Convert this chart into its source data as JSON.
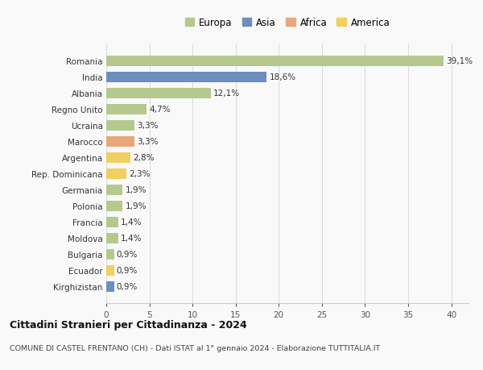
{
  "countries": [
    "Romania",
    "India",
    "Albania",
    "Regno Unito",
    "Ucraina",
    "Marocco",
    "Argentina",
    "Rep. Dominicana",
    "Germania",
    "Polonia",
    "Francia",
    "Moldova",
    "Bulgaria",
    "Ecuador",
    "Kirghizistan"
  ],
  "values": [
    39.1,
    18.6,
    12.1,
    4.7,
    3.3,
    3.3,
    2.8,
    2.3,
    1.9,
    1.9,
    1.4,
    1.4,
    0.9,
    0.9,
    0.9
  ],
  "labels": [
    "39,1%",
    "18,6%",
    "12,1%",
    "4,7%",
    "3,3%",
    "3,3%",
    "2,8%",
    "2,3%",
    "1,9%",
    "1,9%",
    "1,4%",
    "1,4%",
    "0,9%",
    "0,9%",
    "0,9%"
  ],
  "continents": [
    "Europa",
    "Asia",
    "Europa",
    "Europa",
    "Europa",
    "Africa",
    "America",
    "America",
    "Europa",
    "Europa",
    "Europa",
    "Europa",
    "Europa",
    "America",
    "Asia"
  ],
  "colors": {
    "Europa": "#b5c98e",
    "Asia": "#6b8ebf",
    "Africa": "#e8a87c",
    "America": "#f0d060"
  },
  "legend_order": [
    "Europa",
    "Asia",
    "Africa",
    "America"
  ],
  "title": "Cittadini Stranieri per Cittadinanza - 2024",
  "subtitle": "COMUNE DI CASTEL FRENTANO (CH) - Dati ISTAT al 1° gennaio 2024 - Elaborazione TUTTITALIA.IT",
  "xlim": [
    0,
    42
  ],
  "xticks": [
    0,
    5,
    10,
    15,
    20,
    25,
    30,
    35,
    40
  ],
  "background_color": "#f9f9f9",
  "grid_color": "#dddddd"
}
